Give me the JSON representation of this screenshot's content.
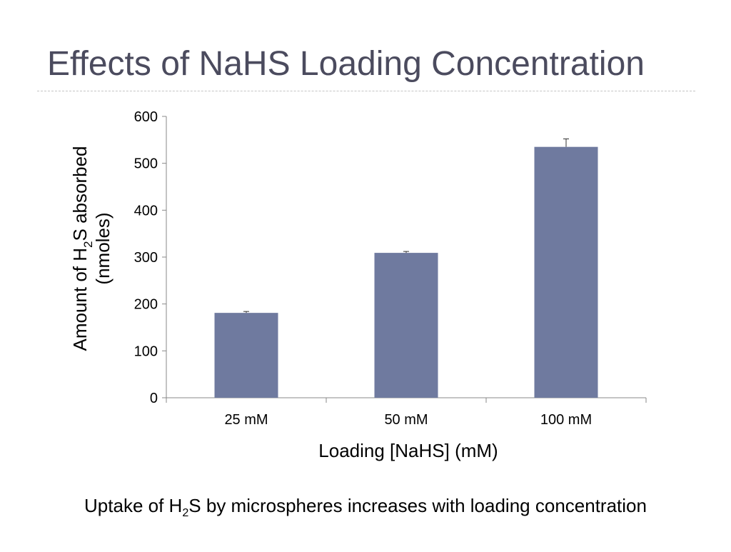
{
  "slide": {
    "title": "Effects of NaHS Loading Concentration",
    "caption": {
      "prefix": "Uptake of H",
      "sub": "2",
      "suffix": "S by microspheres increases with loading concentration"
    }
  },
  "chart_data": {
    "type": "bar",
    "categories": [
      "25 mM",
      "50 mM",
      "100 mM"
    ],
    "values": [
      181,
      309,
      535
    ],
    "error": [
      3,
      3,
      17
    ],
    "title": "",
    "xlabel": "Loading [NaHS] (mM)",
    "ylabel": {
      "line1_prefix": "Amount of H",
      "line1_sub": "2",
      "line1_suffix": "S absorbed",
      "line2": "(nmoles)"
    },
    "ylim": [
      0,
      600
    ],
    "yticks": [
      "0",
      "100",
      "200",
      "300",
      "400",
      "500",
      "600"
    ],
    "grid": false,
    "legend": "none",
    "colors": {
      "bar": "#6f7a9f",
      "axis": "#888888",
      "text": "#000000"
    }
  }
}
